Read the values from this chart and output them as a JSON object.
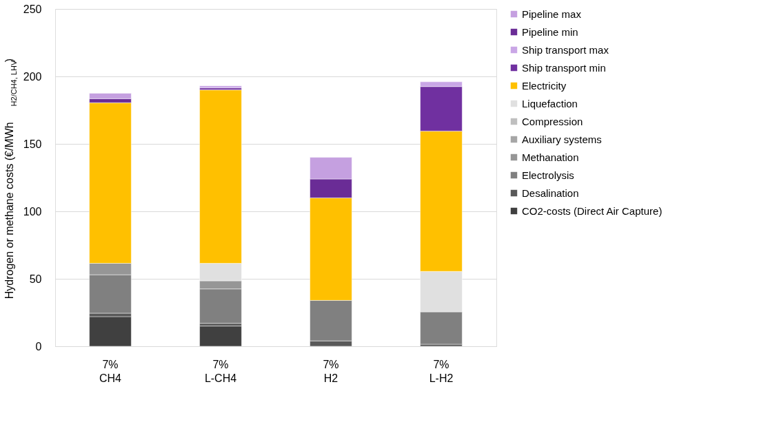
{
  "chart_data": {
    "type": "bar",
    "stacked": true,
    "ylabel": "Hydrogen or methane costs (€/MWh $_{H2/CH4, LHV}$)",
    "categories": [
      "CH4",
      "L-CH4",
      "H2",
      "L-H2"
    ],
    "series": [
      {
        "name": "CO2-costs (Direct Air Capture)",
        "color": "#404040",
        "values": [
          22,
          15,
          null,
          null
        ]
      },
      {
        "name": "Desalination",
        "color": "#595959",
        "values": [
          2.5,
          2,
          4,
          1.5
        ]
      },
      {
        "name": "Electrolysis",
        "color": "#808080",
        "values": [
          28.5,
          25.5,
          30,
          24
        ]
      },
      {
        "name": "Methanation",
        "color": "#969696",
        "values": [
          8.5,
          6,
          null,
          null
        ]
      },
      {
        "name": "Auxiliary systems",
        "color": "#a6a6a6",
        "values": [
          null,
          null,
          null,
          null
        ]
      },
      {
        "name": "Compression",
        "color": "#bfbfbf",
        "values": [
          null,
          null,
          null,
          null
        ]
      },
      {
        "name": "Liquefaction",
        "color": "#e0e0e0",
        "values": [
          null,
          13,
          null,
          30
        ]
      },
      {
        "name": "Electricity",
        "color": "#ffc000",
        "values": [
          119,
          128.5,
          76,
          104
        ]
      },
      {
        "name": "Ship transport min",
        "color": "#7030a0",
        "values": [
          null,
          1.5,
          null,
          33
        ]
      },
      {
        "name": "Ship transport max",
        "color": "#c9a6e6",
        "values": [
          null,
          1.5,
          null,
          3.5
        ]
      },
      {
        "name": "Pipeline min",
        "color": "#6a2c96",
        "values": [
          3,
          null,
          14,
          null
        ]
      },
      {
        "name": "Pipeline max",
        "color": "#c5a0e0",
        "values": [
          4,
          null,
          16,
          null
        ]
      }
    ],
    "annotations": [
      "7%",
      "7%",
      "7%",
      "7%"
    ],
    "ylim": [
      0,
      250
    ],
    "yticks": [
      0,
      50,
      100,
      150,
      200,
      250
    ],
    "grid": "y",
    "legend": "right"
  }
}
